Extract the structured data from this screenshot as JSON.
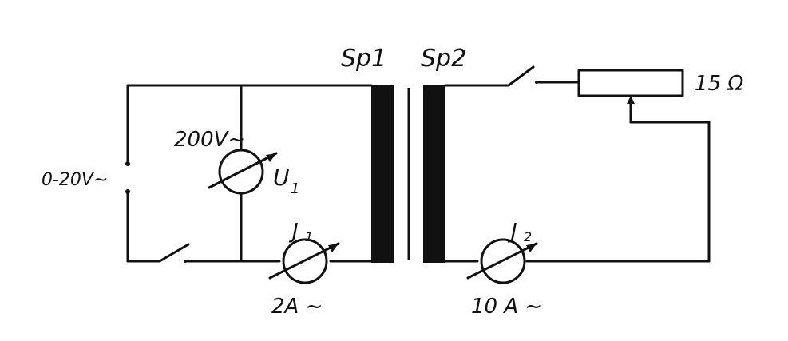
{
  "labels": {
    "sp1": "Sp1",
    "sp2": "Sp2",
    "resistor": "15 Ω",
    "supply": "0-20V~",
    "voltmeter_range": "200V~",
    "voltmeter_symbol": "U",
    "voltmeter_sub": "1",
    "ammeter1_symbol": "J",
    "ammeter1_sub": "1",
    "ammeter1_range": "2A ~",
    "ammeter2_symbol": "J",
    "ammeter2_sub": "2",
    "ammeter2_range": "10 A ~"
  },
  "colors": {
    "ink": "#111111",
    "paper": "#ffffff"
  }
}
